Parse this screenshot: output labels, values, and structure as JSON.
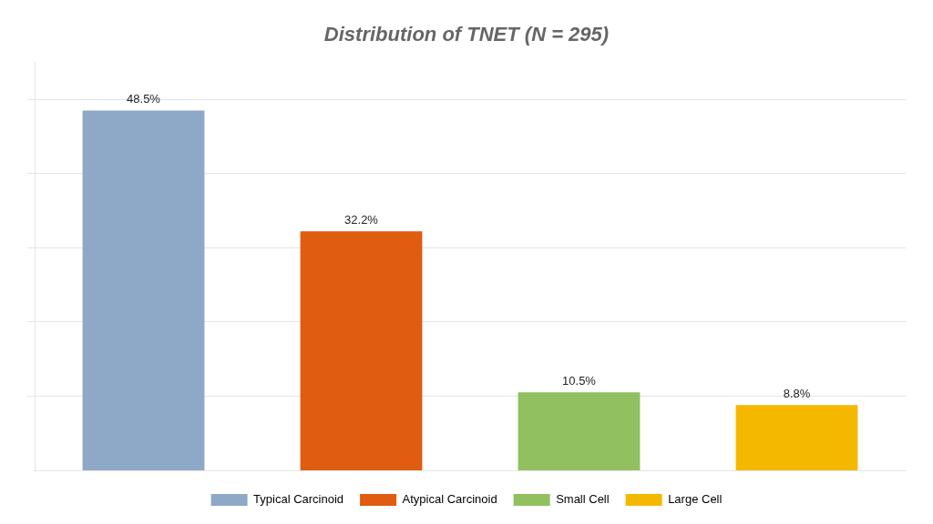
{
  "chart_data": {
    "type": "bar",
    "title": "Distribution of TNET (N = 295)",
    "categories": [
      "Typical Carcinoid",
      "Atypical Carcinoid",
      "Small Cell",
      "Large Cell"
    ],
    "values": [
      48.5,
      32.2,
      10.5,
      8.8
    ],
    "value_labels": [
      "48.5%",
      "32.2%",
      "10.5%",
      "8.8%"
    ],
    "data_labels": true,
    "colors": [
      "#8EA8C8",
      "#E05C10",
      "#90C060",
      "#F5B800"
    ],
    "ylim": [
      0,
      55
    ],
    "yticks": [
      10,
      20,
      30,
      40,
      50
    ],
    "grid": true,
    "tick_labels": false,
    "legend": "bottom"
  }
}
